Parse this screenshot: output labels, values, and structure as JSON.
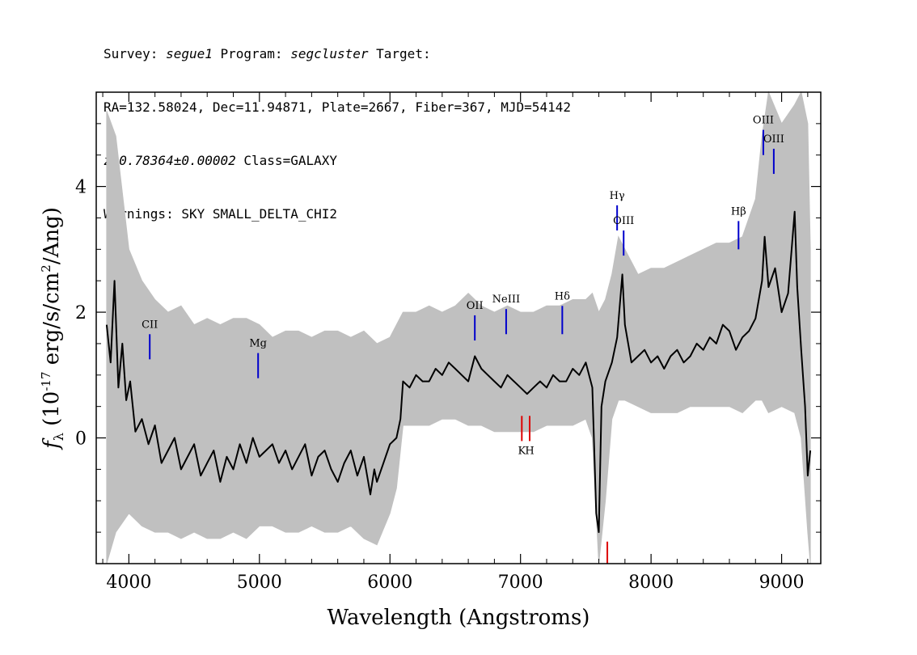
{
  "header": {
    "survey_label": "Survey: ",
    "survey": "segue1",
    "program_label": " Program: ",
    "program": "segcluster",
    "target_label": " Target:",
    "line2": "RA=132.58024, Dec=11.94871, Plate=2667, Fiber=367, MJD=54142",
    "redshift": "z=0.78364±0.00002",
    "class_text": " Class=GALAXY",
    "warnings": "Warnings: SKY SMALL_DELTA_CHI2"
  },
  "colors": {
    "flux": "#000000",
    "error": "#c0c0c0",
    "emission": "#0000cc",
    "absorption": "#dd0000",
    "axes": "#000000"
  },
  "chart_data": {
    "type": "line",
    "xlabel": "Wavelength (Angstroms)",
    "ylabel_f": "f",
    "ylabel_lambda": "λ",
    "ylabel_rest_a": " (10",
    "ylabel_exp1": "-17",
    "ylabel_rest_b": " erg/s/cm",
    "ylabel_exp2": "2",
    "ylabel_rest_c": "/Ang)",
    "xlim": [
      3750,
      9300
    ],
    "ylim": [
      -2.0,
      5.5
    ],
    "x_ticks": [
      4000,
      5000,
      6000,
      7000,
      8000,
      9000
    ],
    "y_ticks": [
      0,
      2,
      4
    ],
    "grid": false,
    "series": [
      {
        "role": "flux",
        "x": [
          3830,
          3860,
          3890,
          3920,
          3950,
          3980,
          4010,
          4050,
          4100,
          4150,
          4200,
          4250,
          4300,
          4350,
          4400,
          4450,
          4500,
          4550,
          4600,
          4650,
          4700,
          4750,
          4800,
          4850,
          4900,
          4950,
          5000,
          5050,
          5100,
          5150,
          5200,
          5250,
          5300,
          5350,
          5400,
          5450,
          5500,
          5550,
          5600,
          5650,
          5700,
          5750,
          5800,
          5850,
          5880,
          5900,
          5950,
          6000,
          6050,
          6080,
          6100,
          6150,
          6200,
          6250,
          6300,
          6350,
          6400,
          6450,
          6500,
          6550,
          6600,
          6650,
          6700,
          6750,
          6800,
          6850,
          6900,
          6950,
          7000,
          7050,
          7100,
          7150,
          7200,
          7250,
          7300,
          7350,
          7400,
          7450,
          7500,
          7550,
          7580,
          7600,
          7620,
          7650,
          7700,
          7740,
          7760,
          7780,
          7800,
          7850,
          7900,
          7950,
          8000,
          8050,
          8100,
          8150,
          8200,
          8250,
          8300,
          8350,
          8400,
          8450,
          8500,
          8550,
          8600,
          8650,
          8700,
          8750,
          8800,
          8850,
          8870,
          8900,
          8950,
          9000,
          9050,
          9100,
          9120,
          9150,
          9180,
          9200,
          9220
        ],
        "y": [
          1.8,
          1.2,
          2.5,
          0.8,
          1.5,
          0.6,
          0.9,
          0.1,
          0.3,
          -0.1,
          0.2,
          -0.4,
          -0.2,
          0.0,
          -0.5,
          -0.3,
          -0.1,
          -0.6,
          -0.4,
          -0.2,
          -0.7,
          -0.3,
          -0.5,
          -0.1,
          -0.4,
          0.0,
          -0.3,
          -0.2,
          -0.1,
          -0.4,
          -0.2,
          -0.5,
          -0.3,
          -0.1,
          -0.6,
          -0.3,
          -0.2,
          -0.5,
          -0.7,
          -0.4,
          -0.2,
          -0.6,
          -0.3,
          -0.9,
          -0.5,
          -0.7,
          -0.4,
          -0.1,
          0.0,
          0.3,
          0.9,
          0.8,
          1.0,
          0.9,
          0.9,
          1.1,
          1.0,
          1.2,
          1.1,
          1.0,
          0.9,
          1.3,
          1.1,
          1.0,
          0.9,
          0.8,
          1.0,
          0.9,
          0.8,
          0.7,
          0.8,
          0.9,
          0.8,
          1.0,
          0.9,
          0.9,
          1.1,
          1.0,
          1.2,
          0.8,
          -1.2,
          -1.5,
          0.5,
          0.9,
          1.2,
          1.6,
          2.1,
          2.6,
          1.8,
          1.2,
          1.3,
          1.4,
          1.2,
          1.3,
          1.1,
          1.3,
          1.4,
          1.2,
          1.3,
          1.5,
          1.4,
          1.6,
          1.5,
          1.8,
          1.7,
          1.4,
          1.6,
          1.7,
          1.9,
          2.5,
          3.2,
          2.4,
          2.7,
          2.0,
          2.3,
          3.6,
          2.4,
          1.4,
          0.5,
          -0.6,
          -0.2
        ]
      },
      {
        "role": "error",
        "x": [
          3830,
          3900,
          4000,
          4100,
          4200,
          4300,
          4400,
          4500,
          4600,
          4700,
          4800,
          4900,
          5000,
          5100,
          5200,
          5300,
          5400,
          5500,
          5600,
          5700,
          5800,
          5900,
          6000,
          6050,
          6100,
          6200,
          6300,
          6400,
          6500,
          6600,
          6700,
          6800,
          6900,
          7000,
          7100,
          7200,
          7300,
          7400,
          7500,
          7550,
          7600,
          7650,
          7700,
          7750,
          7800,
          7900,
          8000,
          8100,
          8200,
          8300,
          8400,
          8500,
          8600,
          8700,
          8800,
          8850,
          8900,
          9000,
          9100,
          9150,
          9200,
          9220
        ],
        "y_low": [
          -2.0,
          -1.5,
          -1.2,
          -1.4,
          -1.5,
          -1.5,
          -1.6,
          -1.5,
          -1.6,
          -1.6,
          -1.5,
          -1.6,
          -1.4,
          -1.4,
          -1.5,
          -1.5,
          -1.4,
          -1.5,
          -1.5,
          -1.4,
          -1.6,
          -1.7,
          -1.2,
          -0.8,
          0.2,
          0.2,
          0.2,
          0.3,
          0.3,
          0.2,
          0.2,
          0.1,
          0.1,
          0.1,
          0.1,
          0.2,
          0.2,
          0.2,
          0.3,
          0.0,
          -2.0,
          -1.0,
          0.3,
          0.6,
          0.6,
          0.5,
          0.4,
          0.4,
          0.4,
          0.5,
          0.5,
          0.5,
          0.5,
          0.4,
          0.6,
          0.6,
          0.4,
          0.5,
          0.4,
          0.0,
          -1.5,
          -2.0
        ],
        "y_high": [
          5.2,
          4.8,
          3.0,
          2.5,
          2.2,
          2.0,
          2.1,
          1.8,
          1.9,
          1.8,
          1.9,
          1.9,
          1.8,
          1.6,
          1.7,
          1.7,
          1.6,
          1.7,
          1.7,
          1.6,
          1.7,
          1.5,
          1.6,
          1.8,
          2.0,
          2.0,
          2.1,
          2.0,
          2.1,
          2.3,
          2.1,
          2.0,
          2.1,
          2.0,
          2.0,
          2.1,
          2.1,
          2.2,
          2.2,
          2.3,
          2.0,
          2.2,
          2.6,
          3.2,
          3.0,
          2.6,
          2.7,
          2.7,
          2.8,
          2.9,
          3.0,
          3.1,
          3.1,
          3.2,
          3.8,
          4.8,
          5.5,
          5.0,
          5.3,
          5.5,
          5.0,
          3.0
        ]
      }
    ],
    "annotations": [
      {
        "label": "CII",
        "x": 4160,
        "y": 1.25,
        "y2": 1.65,
        "kind": "emission"
      },
      {
        "label": "Mg",
        "x": 4990,
        "y": 0.95,
        "y2": 1.35,
        "kind": "emission"
      },
      {
        "label": "OII",
        "x": 6650,
        "y": 1.55,
        "y2": 1.95,
        "kind": "emission"
      },
      {
        "label": "NeIII",
        "x": 6890,
        "y": 1.65,
        "y2": 2.05,
        "kind": "emission"
      },
      {
        "label": "Hδ",
        "x": 7320,
        "y": 1.65,
        "y2": 2.1,
        "kind": "emission"
      },
      {
        "label": "Hγ",
        "x": 7740,
        "y": 3.3,
        "y2": 3.7,
        "kind": "emission"
      },
      {
        "label": "OIII",
        "x": 7790,
        "y": 2.9,
        "y2": 3.3,
        "kind": "emission"
      },
      {
        "label": "Hβ",
        "x": 8670,
        "y": 3.0,
        "y2": 3.45,
        "kind": "emission"
      },
      {
        "label": "OIII",
        "x": 8860,
        "y": 4.5,
        "y2": 4.9,
        "kind": "emission"
      },
      {
        "label": "OIII",
        "x": 8940,
        "y": 4.2,
        "y2": 4.6,
        "kind": "emission"
      },
      {
        "label": "K",
        "x": 7010,
        "y": 0.35,
        "y2": -0.05,
        "kind": "absorption"
      },
      {
        "label": "H",
        "x": 7070,
        "y": 0.35,
        "y2": -0.05,
        "kind": "absorption"
      },
      {
        "label": "",
        "x": 7665,
        "y": -1.65,
        "y2": -2.0,
        "kind": "absorption"
      }
    ]
  }
}
